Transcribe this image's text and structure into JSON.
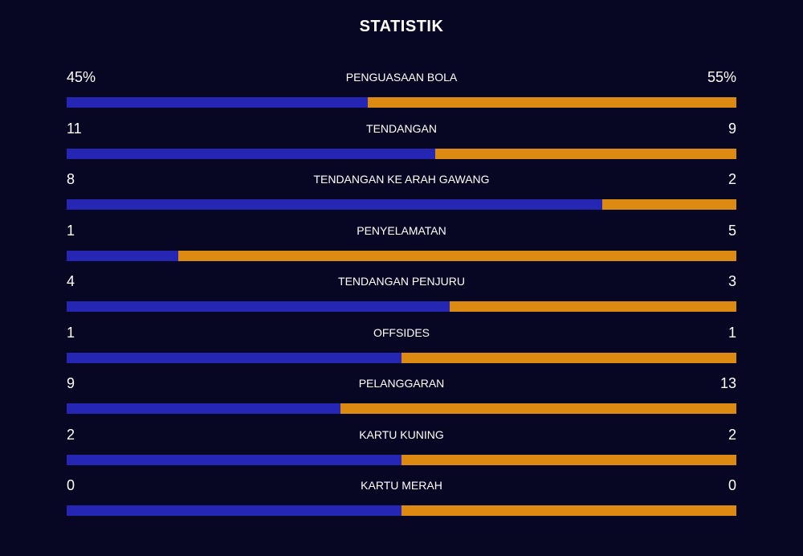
{
  "title": "STATISTIK",
  "colors": {
    "background": "#070723",
    "home": "#2626b4",
    "away": "#dc8a12"
  },
  "stats": [
    {
      "label": "PENGUASAAN BOLA",
      "home": "45%",
      "away": "55%",
      "home_share": 0.45
    },
    {
      "label": "TENDANGAN",
      "home": "11",
      "away": "9",
      "home_share": 0.55
    },
    {
      "label": "TENDANGAN KE ARAH GAWANG",
      "home": "8",
      "away": "2",
      "home_share": 0.8
    },
    {
      "label": "PENYELAMATAN",
      "home": "1",
      "away": "5",
      "home_share": 0.1667
    },
    {
      "label": "TENDANGAN PENJURU",
      "home": "4",
      "away": "3",
      "home_share": 0.5714
    },
    {
      "label": "OFFSIDES",
      "home": "1",
      "away": "1",
      "home_share": 0.5
    },
    {
      "label": "PELANGGARAN",
      "home": "9",
      "away": "13",
      "home_share": 0.4091
    },
    {
      "label": "KARTU KUNING",
      "home": "2",
      "away": "2",
      "home_share": 0.5
    },
    {
      "label": "KARTU MERAH",
      "home": "0",
      "away": "0",
      "home_share": 0.5
    }
  ]
}
